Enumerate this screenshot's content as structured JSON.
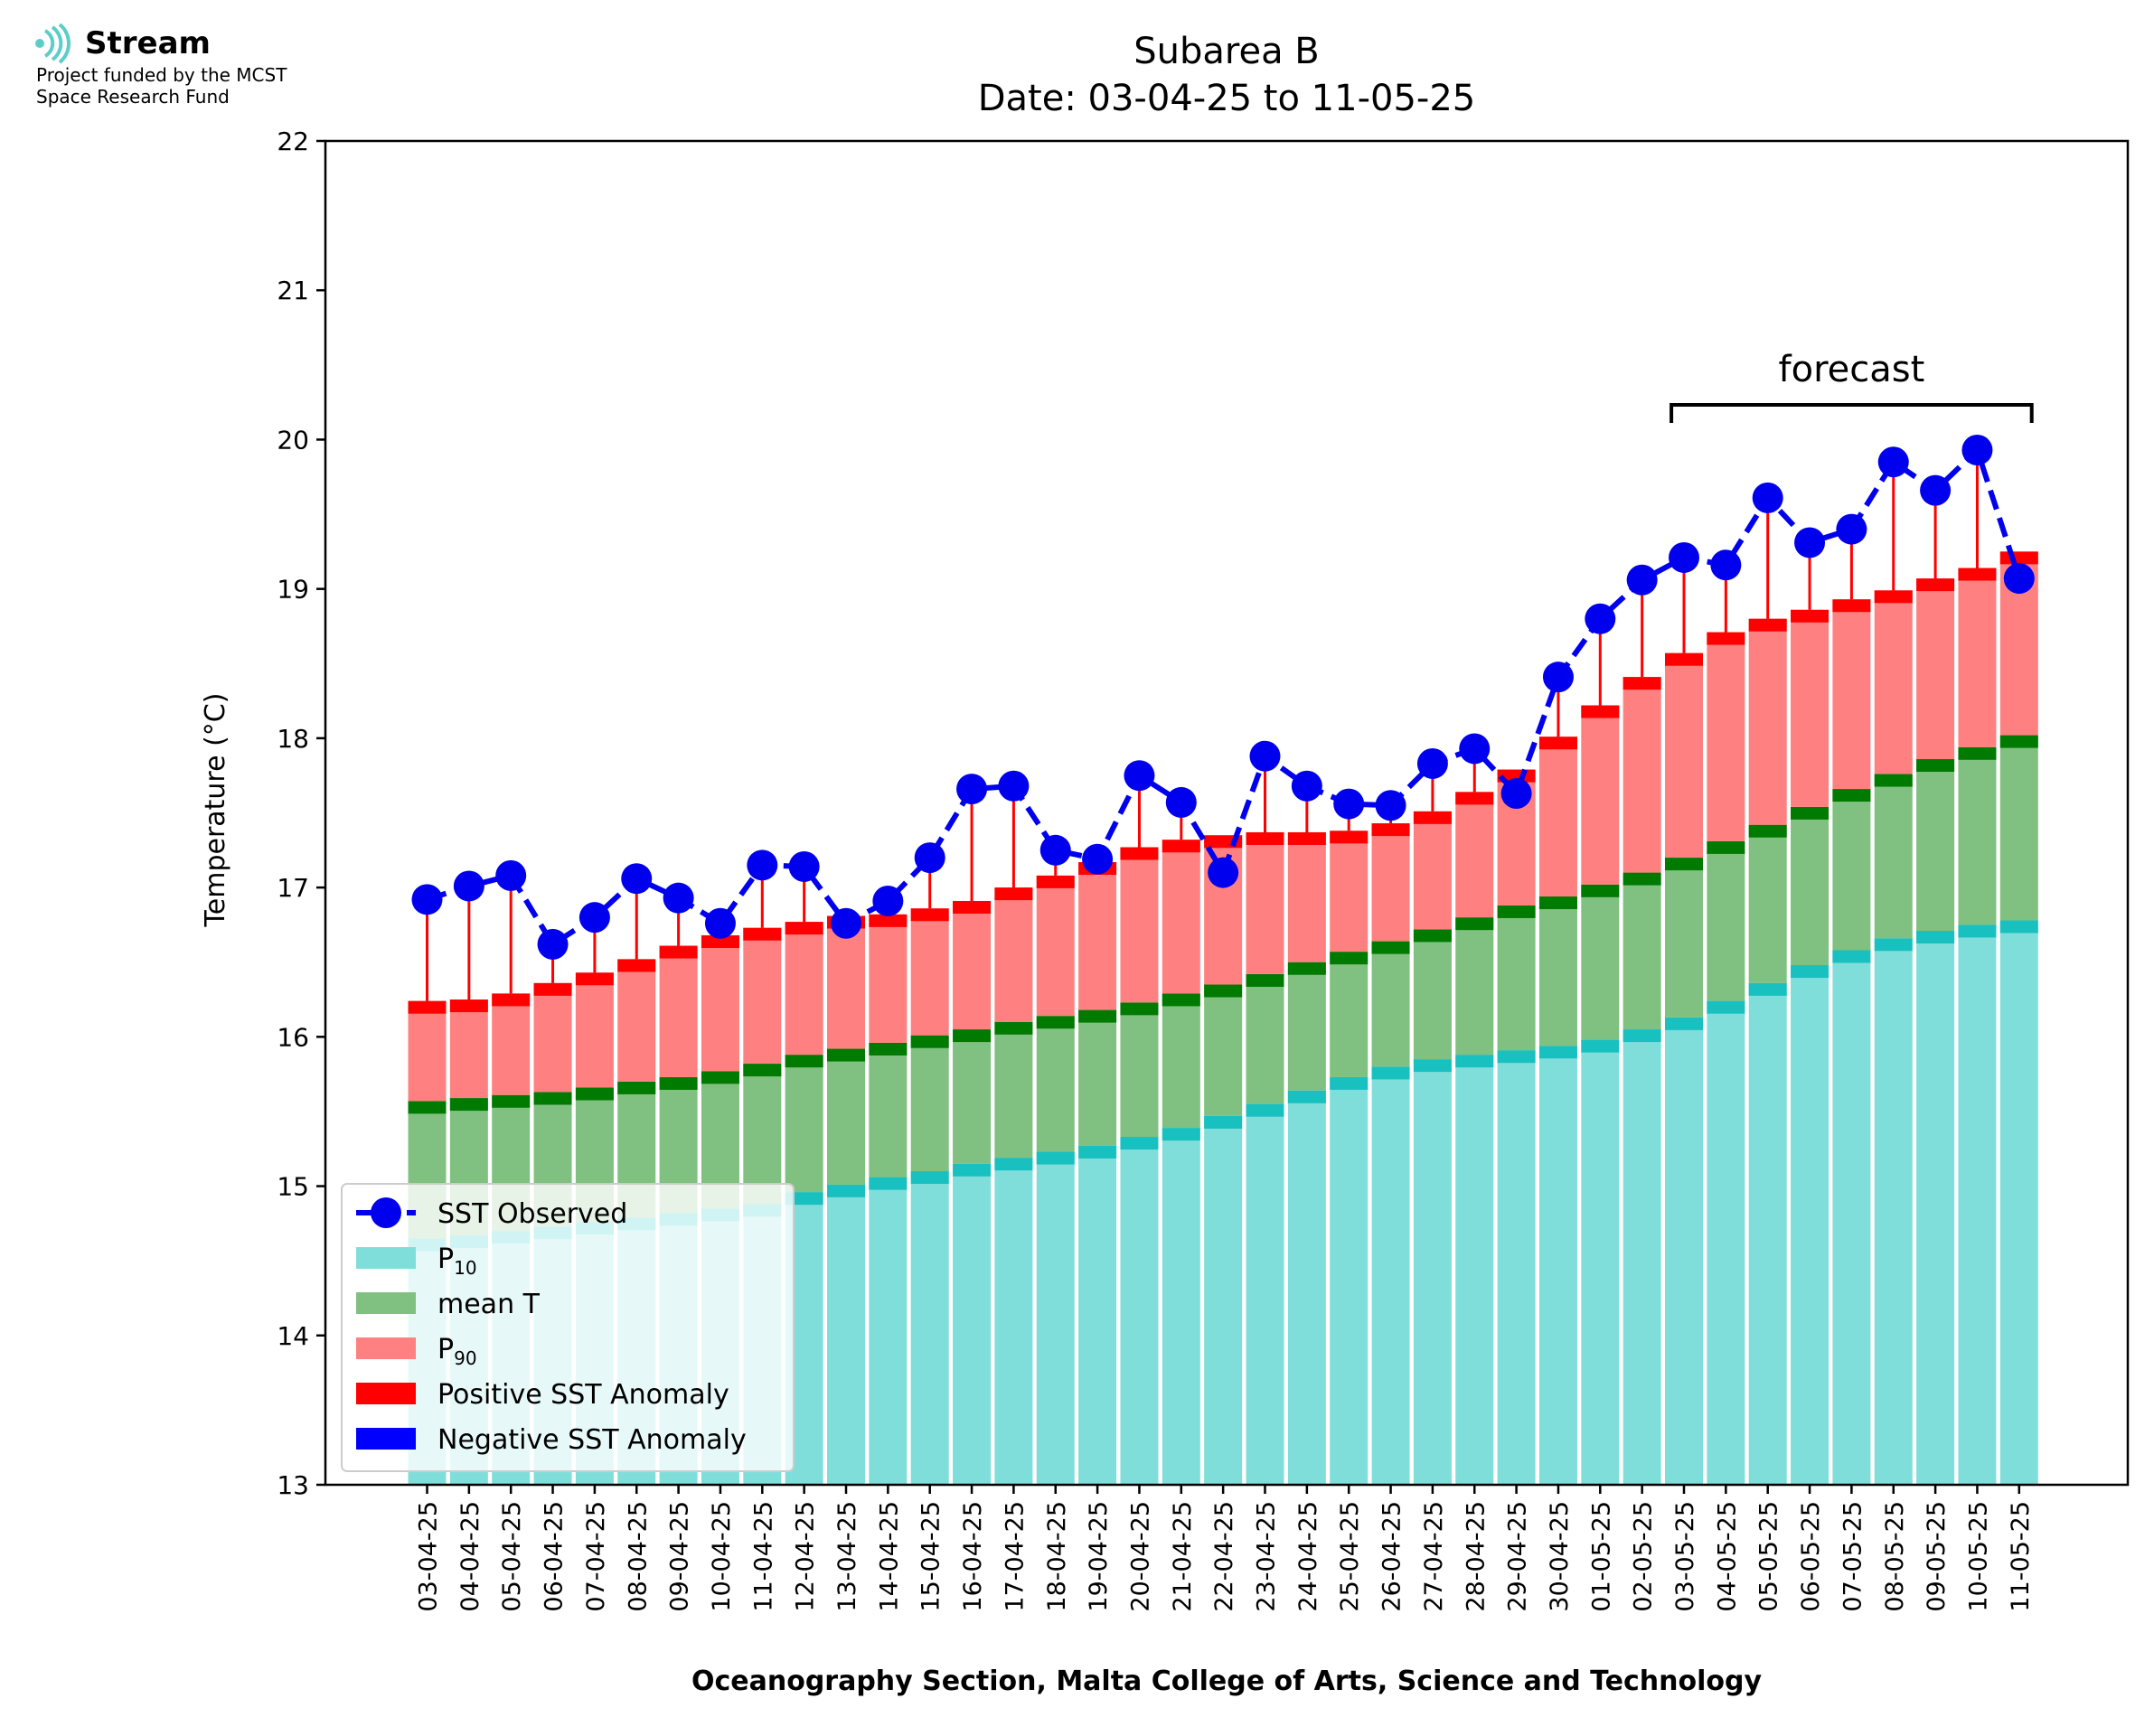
{
  "branding": {
    "logo_name": "Stream",
    "funding_line1": "Project funded by the MCST",
    "funding_line2": "Space Research Fund",
    "logo_icon": "stream-waves-icon",
    "logo_color": "#5ccdc9"
  },
  "chart_data": {
    "type": "bar",
    "title": "Subarea B",
    "subtitle": "Date: 03-04-25 to 11-05-25",
    "xlabel": "Oceanography Section, Malta College of Arts, Science and Technology",
    "ylabel": "Temperature (°C)",
    "ylim": [
      13,
      22
    ],
    "yticks": [
      13,
      14,
      15,
      16,
      17,
      18,
      19,
      20,
      21,
      22
    ],
    "grid": false,
    "legend_position": "lower-left",
    "annotation": {
      "text": "forecast",
      "from": "03-05-25",
      "to": "11-05-25"
    },
    "colors": {
      "p10": "#80deda",
      "p10_cap": "#18c0c0",
      "mean": "#80c080",
      "mean_cap": "#007a00",
      "p90": "#ff8080",
      "p90_cap": "#ff0000",
      "observed": "#0000ee",
      "positive_anomaly": "#ff0000",
      "negative_anomaly": "#0000ff"
    },
    "categories": [
      "03-04-25",
      "04-04-25",
      "05-04-25",
      "06-04-25",
      "07-04-25",
      "08-04-25",
      "09-04-25",
      "10-04-25",
      "11-04-25",
      "12-04-25",
      "13-04-25",
      "14-04-25",
      "15-04-25",
      "16-04-25",
      "17-04-25",
      "18-04-25",
      "19-04-25",
      "20-04-25",
      "21-04-25",
      "22-04-25",
      "23-04-25",
      "24-04-25",
      "25-04-25",
      "26-04-25",
      "27-04-25",
      "28-04-25",
      "29-04-25",
      "30-04-25",
      "01-05-25",
      "02-05-25",
      "03-05-25",
      "04-05-25",
      "05-05-25",
      "06-05-25",
      "07-05-25",
      "08-05-25",
      "09-05-25",
      "10-05-25",
      "11-05-25"
    ],
    "series": [
      {
        "name": "SST Observed",
        "values": [
          16.92,
          17.01,
          17.08,
          16.62,
          16.8,
          17.06,
          16.93,
          16.76,
          17.15,
          17.14,
          16.76,
          16.91,
          17.2,
          17.66,
          17.68,
          17.25,
          17.19,
          17.75,
          17.57,
          17.1,
          17.88,
          17.68,
          17.56,
          17.55,
          17.83,
          17.93,
          17.63,
          18.41,
          18.8,
          19.06,
          19.21,
          19.16,
          19.61,
          19.31,
          19.4,
          19.85,
          19.66,
          19.93,
          19.07
        ]
      },
      {
        "name": "P10",
        "name_sub": "10",
        "values": [
          14.65,
          14.67,
          14.7,
          14.73,
          14.76,
          14.79,
          14.82,
          14.85,
          14.88,
          14.96,
          15.01,
          15.06,
          15.1,
          15.15,
          15.19,
          15.23,
          15.27,
          15.33,
          15.39,
          15.47,
          15.55,
          15.64,
          15.73,
          15.8,
          15.85,
          15.88,
          15.91,
          15.94,
          15.98,
          16.05,
          16.13,
          16.24,
          16.36,
          16.48,
          16.58,
          16.66,
          16.71,
          16.75,
          16.78
        ]
      },
      {
        "name": "mean T",
        "values": [
          15.57,
          15.59,
          15.61,
          15.63,
          15.66,
          15.7,
          15.73,
          15.77,
          15.82,
          15.88,
          15.92,
          15.96,
          16.01,
          16.05,
          16.1,
          16.14,
          16.18,
          16.23,
          16.29,
          16.35,
          16.42,
          16.5,
          16.57,
          16.64,
          16.72,
          16.8,
          16.88,
          16.94,
          17.02,
          17.1,
          17.2,
          17.31,
          17.42,
          17.54,
          17.66,
          17.76,
          17.86,
          17.94,
          18.02
        ]
      },
      {
        "name": "P90",
        "name_sub": "90",
        "values": [
          16.24,
          16.25,
          16.29,
          16.36,
          16.43,
          16.52,
          16.61,
          16.68,
          16.73,
          16.77,
          16.81,
          16.82,
          16.86,
          16.91,
          17.0,
          17.08,
          17.17,
          17.27,
          17.32,
          17.35,
          17.37,
          17.37,
          17.38,
          17.43,
          17.51,
          17.64,
          17.79,
          18.01,
          18.22,
          18.41,
          18.57,
          18.71,
          18.8,
          18.86,
          18.93,
          18.99,
          19.07,
          19.14,
          19.25
        ]
      }
    ],
    "legend": [
      {
        "label": "SST Observed",
        "kind": "line"
      },
      {
        "label": "P",
        "sub": "10",
        "kind": "p10"
      },
      {
        "label": "mean T",
        "kind": "mean"
      },
      {
        "label": "P",
        "sub": "90",
        "kind": "p90"
      },
      {
        "label": "Positive SST Anomaly",
        "kind": "pos"
      },
      {
        "label": "Negative SST Anomaly",
        "kind": "neg"
      }
    ]
  }
}
